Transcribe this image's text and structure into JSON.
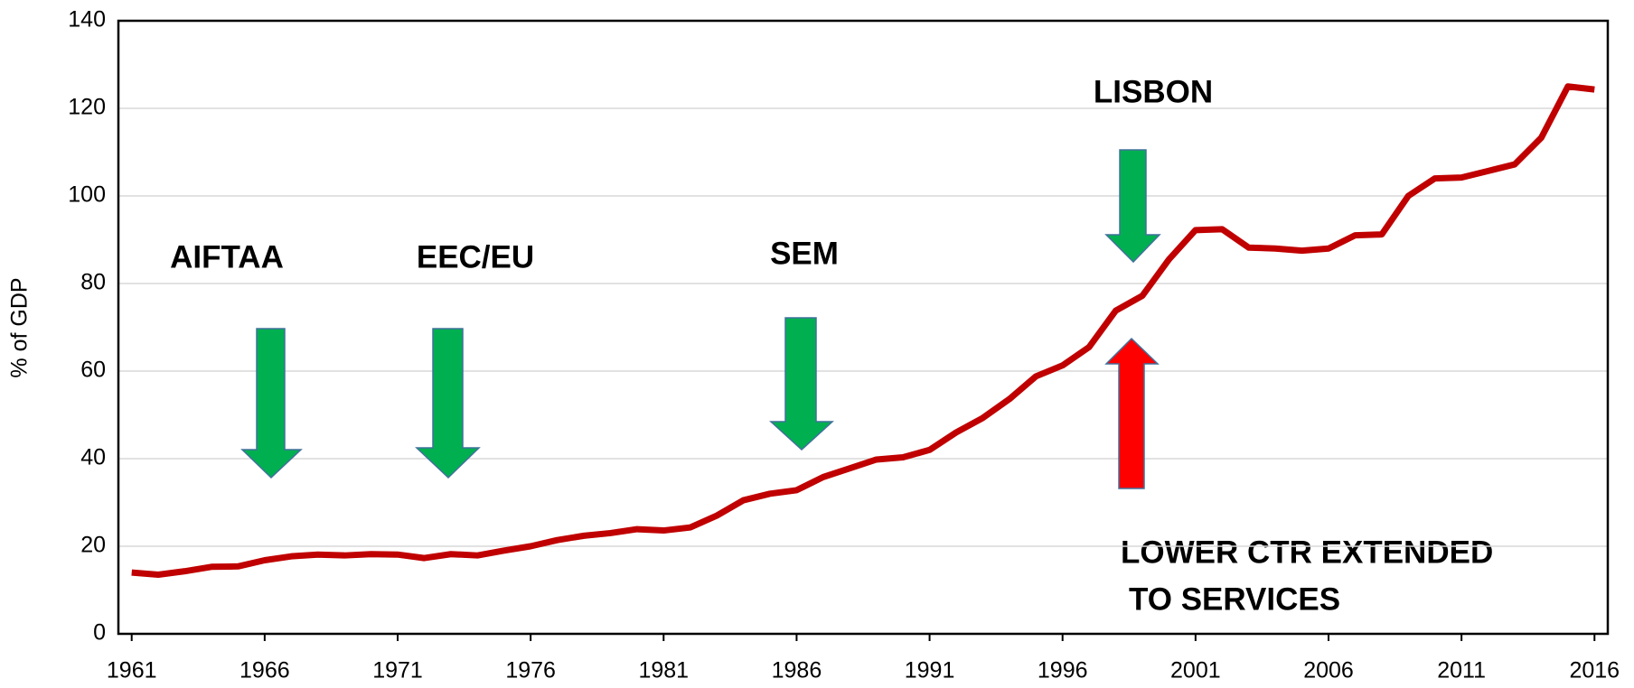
{
  "chart_data": {
    "type": "line",
    "y_label": "% of GDP",
    "x": [
      1961,
      1962,
      1963,
      1964,
      1965,
      1966,
      1967,
      1968,
      1969,
      1970,
      1971,
      1972,
      1973,
      1974,
      1975,
      1976,
      1977,
      1978,
      1979,
      1980,
      1981,
      1982,
      1983,
      1984,
      1985,
      1986,
      1987,
      1988,
      1989,
      1990,
      1991,
      1992,
      1993,
      1994,
      1995,
      1996,
      1997,
      1998,
      1999,
      2000,
      2001,
      2002,
      2003,
      2004,
      2005,
      2006,
      2007,
      2008,
      2009,
      2010,
      2011,
      2012,
      2013,
      2014,
      2015,
      2016
    ],
    "series": [
      {
        "color": "#c00000",
        "values": [
          14,
          13.5,
          14.3,
          15.3,
          15.4,
          16.8,
          17.7,
          18.1,
          17.9,
          18.2,
          18.1,
          17.3,
          18.2,
          17.9,
          19,
          20,
          21.4,
          22.4,
          23,
          23.9,
          23.6,
          24.3,
          27,
          30.5,
          32,
          32.8,
          35.8,
          37.8,
          39.8,
          40.3,
          42,
          46,
          49.3,
          53.6,
          58.8,
          61.3,
          65.5,
          73.8,
          77.2,
          85.5,
          92.2,
          92.4,
          88.2,
          88,
          87.5,
          88,
          91,
          91.2,
          100,
          104,
          104.2,
          105.7,
          107.2,
          113.3,
          125,
          124.3
        ]
      }
    ],
    "xlim": [
      1960.5,
      2016.5
    ],
    "xticks": [
      1961,
      1966,
      1971,
      1976,
      1981,
      1986,
      1991,
      1996,
      2001,
      2006,
      2011,
      2016
    ],
    "ylim": [
      0,
      140
    ],
    "yticks": [
      0,
      20,
      40,
      60,
      80,
      100,
      120,
      140
    ],
    "grid": true,
    "annotations": [
      "AIFTAA",
      "EEC/EU",
      "SEM",
      "LISBON",
      "LOWER CTR EXTENDED",
      "TO SERVICES"
    ]
  }
}
